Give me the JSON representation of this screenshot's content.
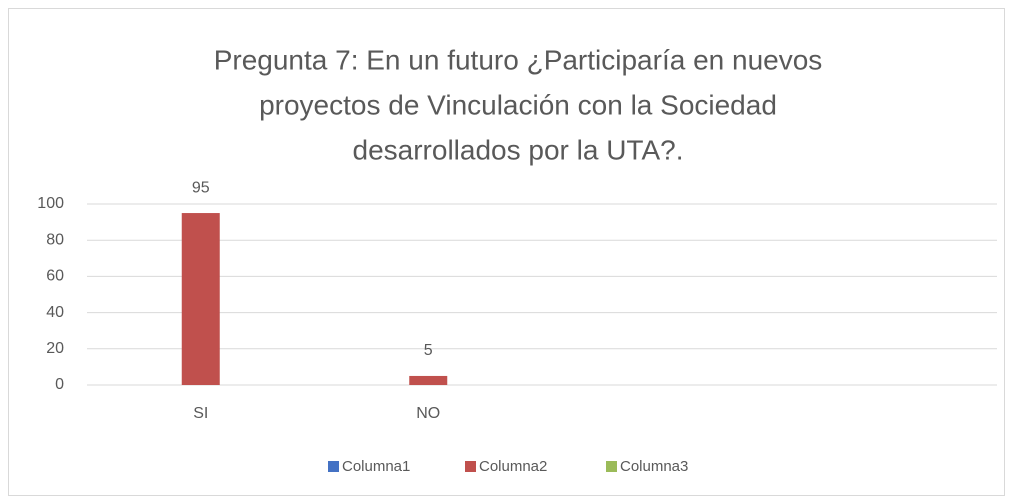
{
  "chart_data": {
    "type": "bar",
    "title": [
      "Pregunta 7: En un futuro ¿Participaría en nuevos",
      "proyectos de Vinculación con la Sociedad",
      "desarrollados por la UTA?."
    ],
    "categories": [
      "SI",
      "NO",
      null,
      null
    ],
    "series": [
      {
        "name": "Columna1",
        "color": "#4472c4",
        "values": [
          null,
          null,
          null,
          null
        ]
      },
      {
        "name": "Columna2",
        "color": "#c0504d",
        "values": [
          95,
          5,
          null,
          null
        ]
      },
      {
        "name": "Columna3",
        "color": "#9bbb59",
        "values": [
          null,
          null,
          null,
          null
        ]
      }
    ],
    "ylim": [
      0,
      100
    ],
    "yticks": [
      0,
      20,
      40,
      60,
      80,
      100
    ],
    "grid": true,
    "legend": "bottom"
  }
}
